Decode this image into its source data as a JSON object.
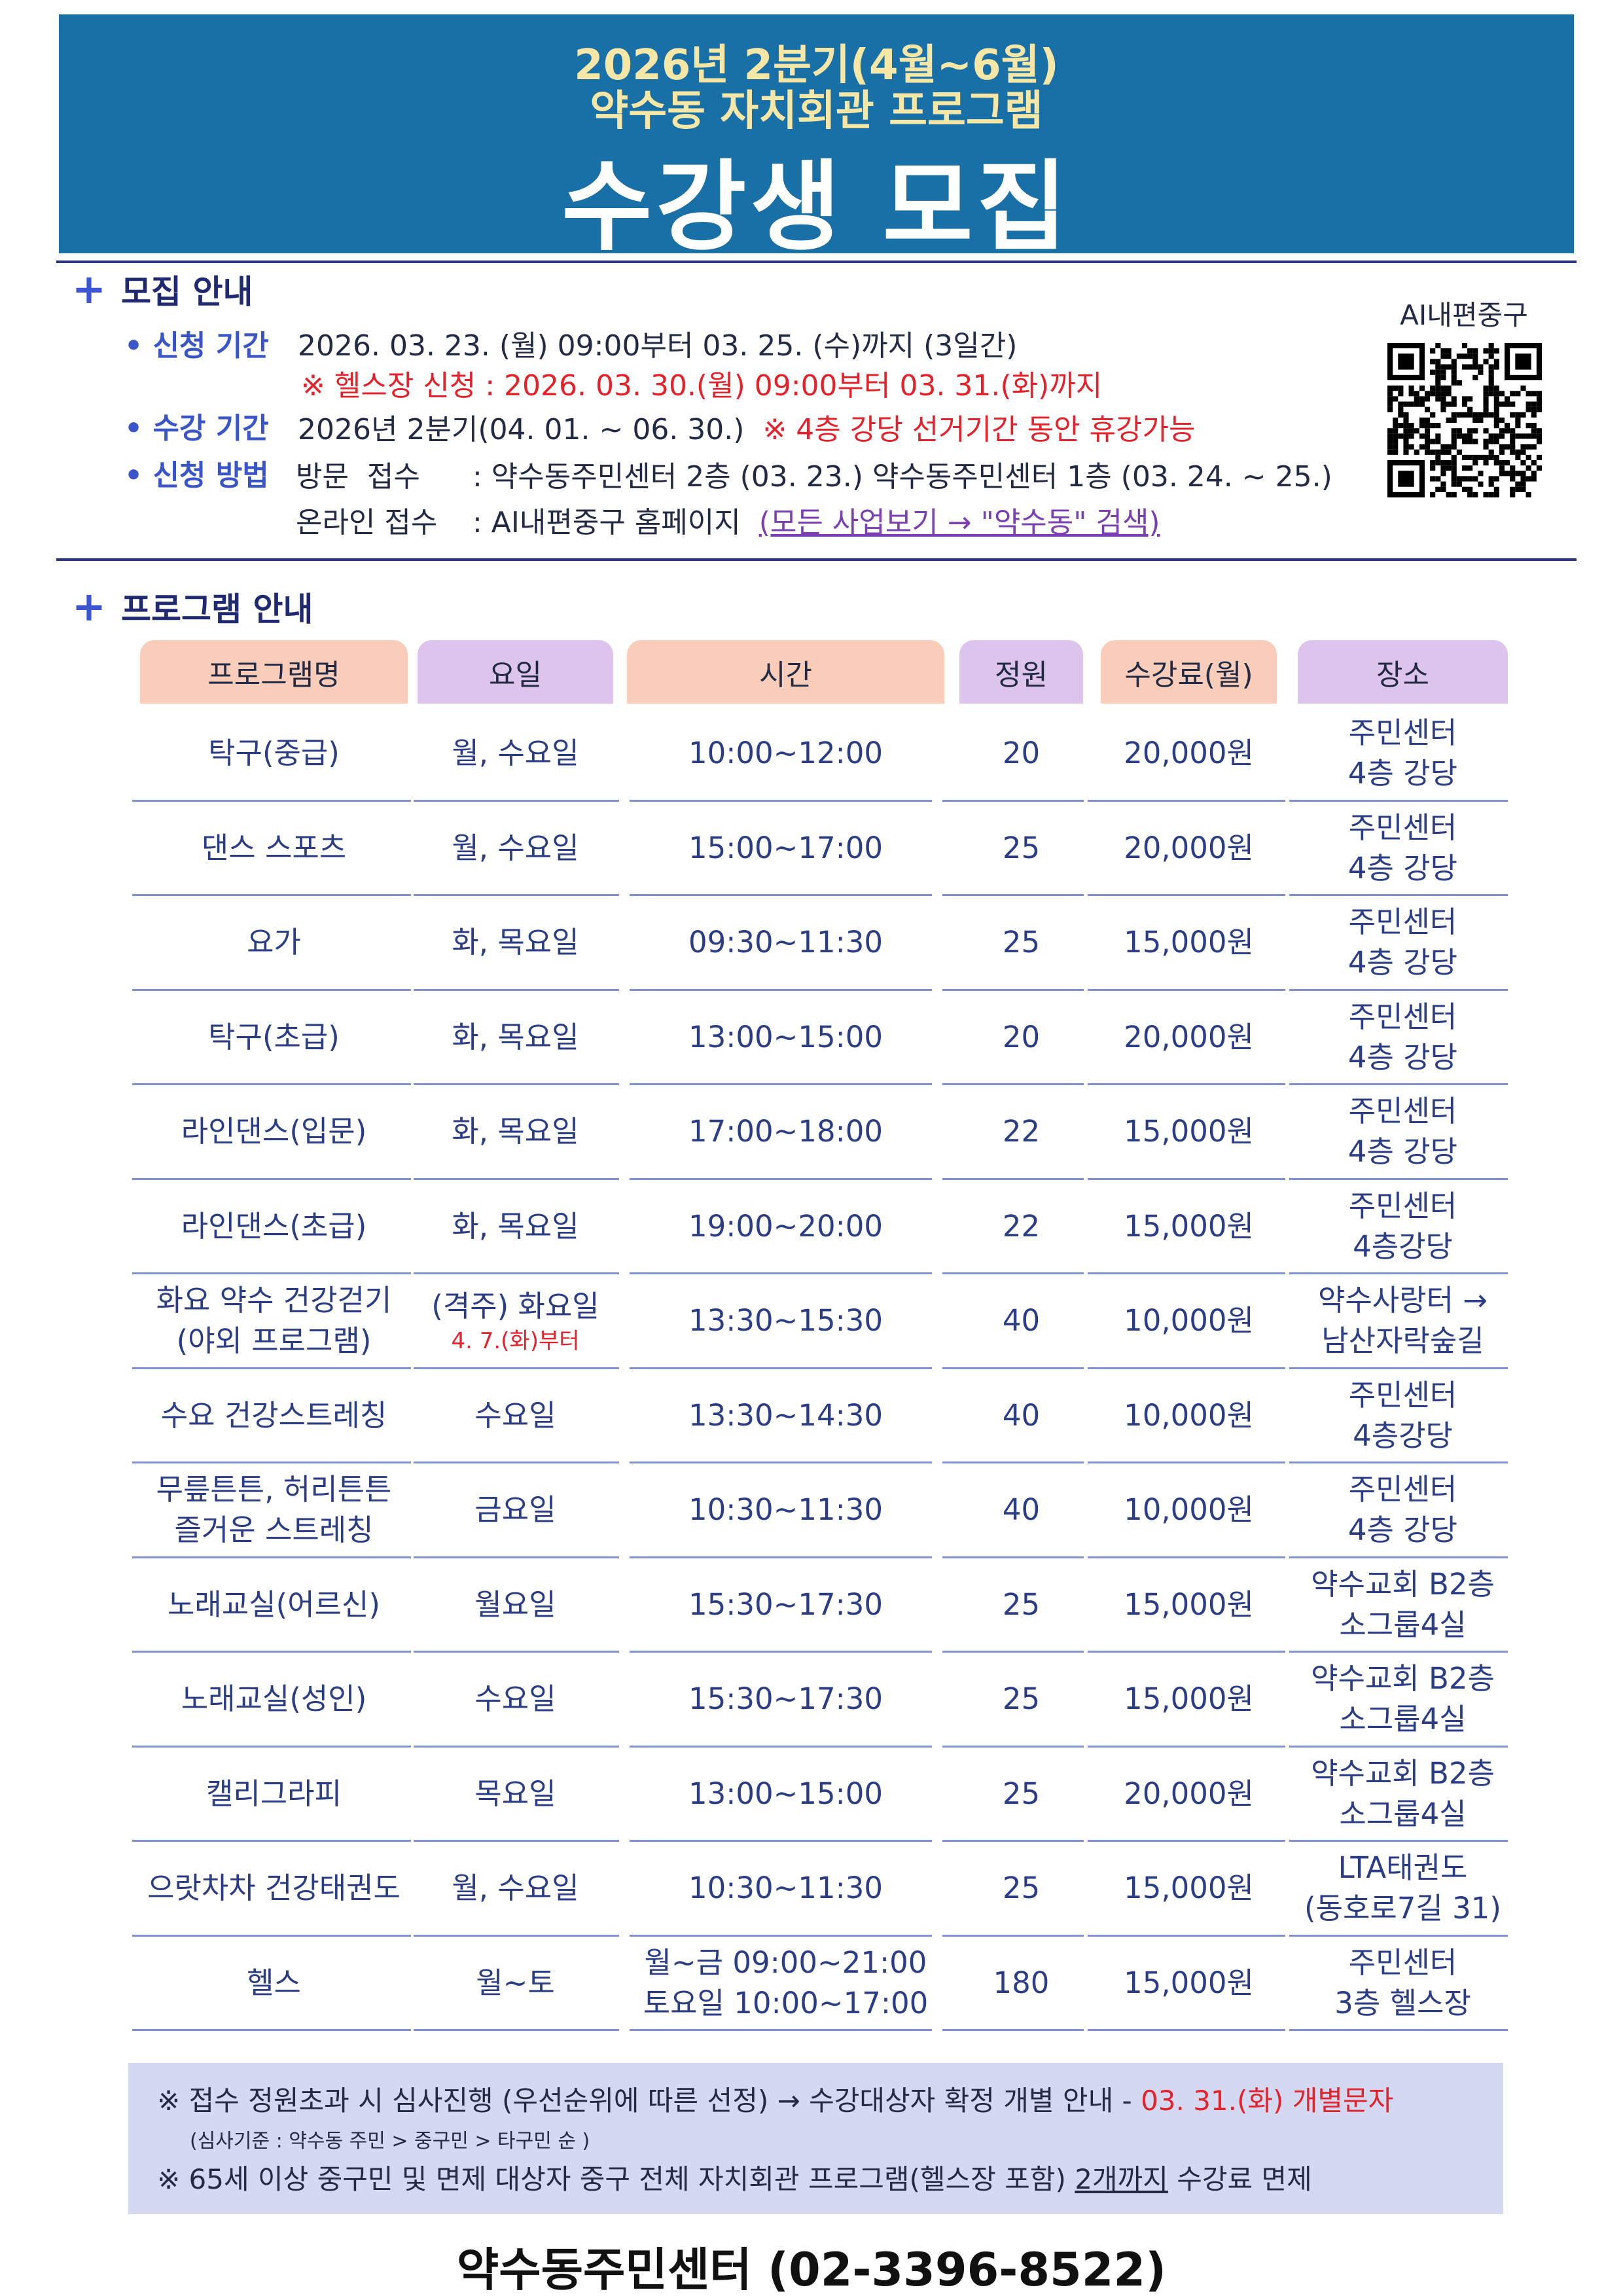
{
  "header": {
    "line1": "2026년 2분기(4월~6월)",
    "line2": "약수동 자치회관 프로그램",
    "title": "수강생 모집"
  },
  "recruit": {
    "heading": "모집 안내",
    "qr_label": "AI내편중구",
    "application_period": {
      "label": "신청 기간",
      "text": "2026. 03. 23. (월) 09:00부터 03. 25. (수)까지 (3일간)",
      "note": "※ 헬스장 신청 : 2026. 03. 30.(월) 09:00부터 03. 31.(화)까지"
    },
    "course_period": {
      "label": "수강 기간",
      "text": "2026년 2분기(04. 01. ~ 06. 30.)",
      "note": "※ 4층 강당 선거기간 동안 휴강가능"
    },
    "method": {
      "label": "신청 방법",
      "visit_label": "방문  접수",
      "visit_text": ": 약수동주민센터 2층 (03. 23.) 약수동주민센터 1층 (03. 24. ~ 25.)",
      "online_label": "온라인 접수",
      "online_text": ": AI내편중구 홈페이지",
      "online_link": "(모든 사업보기 → \"약수동\" 검색)"
    }
  },
  "program": {
    "heading": "프로그램 안내",
    "columns": [
      "프로그램명",
      "요일",
      "시간",
      "정원",
      "수강료(월)",
      "장소"
    ],
    "rows": [
      {
        "name": "탁구(중급)",
        "day": "월, 수요일",
        "time": "10:00~12:00",
        "capacity": 20,
        "fee": "20,000원",
        "place": "주민센터\n4층 강당"
      },
      {
        "name": "댄스 스포츠",
        "day": "월, 수요일",
        "time": "15:00~17:00",
        "capacity": 25,
        "fee": "20,000원",
        "place": "주민센터\n4층 강당"
      },
      {
        "name": "요가",
        "day": "화, 목요일",
        "time": "09:30~11:30",
        "capacity": 25,
        "fee": "15,000원",
        "place": "주민센터\n4층 강당"
      },
      {
        "name": "탁구(초급)",
        "day": "화, 목요일",
        "time": "13:00~15:00",
        "capacity": 20,
        "fee": "20,000원",
        "place": "주민센터\n4층 강당"
      },
      {
        "name": "라인댄스(입문)",
        "day": "화, 목요일",
        "time": "17:00~18:00",
        "capacity": 22,
        "fee": "15,000원",
        "place": "주민센터\n4층 강당"
      },
      {
        "name": "라인댄스(초급)",
        "day": "화, 목요일",
        "time": "19:00~20:00",
        "capacity": 22,
        "fee": "15,000원",
        "place": "주민센터\n4층강당"
      },
      {
        "name": "화요 약수 건강걷기\n(야외 프로그램)",
        "day": "(격주) 화요일",
        "day_note": "4. 7.(화)부터",
        "time": "13:30~15:30",
        "capacity": 40,
        "fee": "10,000원",
        "place": "약수사랑터 →\n남산자락숲길"
      },
      {
        "name": "수요 건강스트레칭",
        "day": "수요일",
        "time": "13:30~14:30",
        "capacity": 40,
        "fee": "10,000원",
        "place": "주민센터\n4층강당"
      },
      {
        "name": "무릎튼튼, 허리튼튼\n즐거운 스트레칭",
        "day": "금요일",
        "time": "10:30~11:30",
        "capacity": 40,
        "fee": "10,000원",
        "place": "주민센터\n4층 강당"
      },
      {
        "name": "노래교실(어르신)",
        "day": "월요일",
        "time": "15:30~17:30",
        "capacity": 25,
        "fee": "15,000원",
        "place": "약수교회 B2층\n소그룹4실"
      },
      {
        "name": "노래교실(성인)",
        "day": "수요일",
        "time": "15:30~17:30",
        "capacity": 25,
        "fee": "15,000원",
        "place": "약수교회 B2층\n소그룹4실"
      },
      {
        "name": "캘리그라피",
        "day": "목요일",
        "time": "13:00~15:00",
        "capacity": 25,
        "fee": "20,000원",
        "place": "약수교회 B2층\n소그룹4실"
      },
      {
        "name": "으랏차차 건강태권도",
        "day": "월, 수요일",
        "time": "10:30~11:30",
        "capacity": 25,
        "fee": "15,000원",
        "place": "LTA태권도\n(동호로7길 31)"
      },
      {
        "name": "헬스",
        "day": "월~토",
        "time": "월~금  09:00~21:00\n토요일 10:00~17:00",
        "capacity": 180,
        "fee": "15,000원",
        "place": "주민센터\n3층 헬스장"
      }
    ]
  },
  "notes": {
    "line1": "※ 접수 정원초과 시 심사진행 (우선순위에 따른 선정) → 수강대상자 확정 개별 안내 - ",
    "line1_highlight": "03. 31.(화) 개별문자",
    "line2": "(심사기준 : 약수동 주민 > 중구민 > 타구민 순 )",
    "line3": "※ 65세 이상 중구민 및 면제 대상자 중구 전체 자치회관 프로그램(헬스장 포함) ",
    "line3_underline": "2개까지",
    "line3_end": " 수강료 면제"
  },
  "footer": "약수동주민센터 (02-3396-8522)"
}
